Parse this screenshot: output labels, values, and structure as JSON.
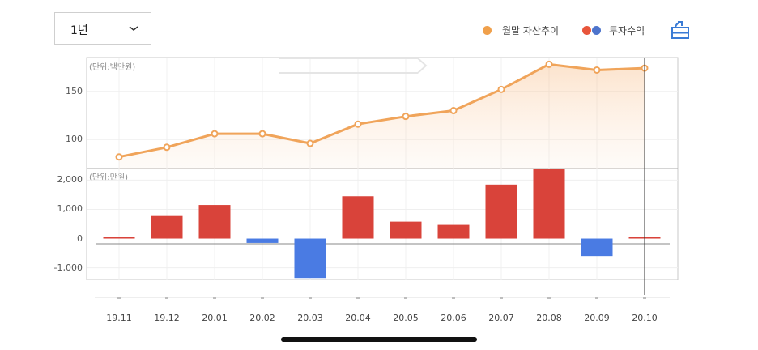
{
  "controls": {
    "period": "1년",
    "legend": {
      "asset_trend": "월말 자산추이",
      "investment_return": "투자수익"
    }
  },
  "colors": {
    "line": "#f0a45a",
    "positive": "#d9433a",
    "negative": "#4a7be3",
    "legend_orange": "#f0a04b",
    "legend_red": "#e8553b",
    "legend_blue": "#4d74cc",
    "icon_blue": "#3a7bd5"
  },
  "chart_data": [
    {
      "type": "line",
      "unit_label": "(단위:백만원)",
      "x": [
        "19.11",
        "19.12",
        "20.01",
        "20.02",
        "20.03",
        "20.04",
        "20.05",
        "20.06",
        "20.07",
        "20.08",
        "20.09",
        "20.10"
      ],
      "values": [
        82,
        92,
        106,
        106,
        96,
        116,
        124,
        130,
        152,
        178,
        172,
        174
      ],
      "ylim": [
        70,
        185
      ],
      "yticks": [
        100,
        150
      ],
      "yticks_labels": [
        "100",
        "150"
      ],
      "fill": "area-gradient"
    },
    {
      "type": "bar",
      "unit_label": "(단위:만원)",
      "categories": [
        "19.11",
        "19.12",
        "20.01",
        "20.02",
        "20.03",
        "20.04",
        "20.05",
        "20.06",
        "20.07",
        "20.08",
        "20.09",
        "20.10"
      ],
      "values": [
        60,
        800,
        1150,
        -150,
        -1350,
        1450,
        580,
        470,
        1850,
        2400,
        -600,
        60
      ],
      "ylim": [
        -1400,
        2400
      ],
      "yticks": [
        -1000,
        0,
        1000,
        2000
      ],
      "yticks_labels": [
        "-1,000",
        "0",
        "1,000",
        "2,000"
      ]
    }
  ]
}
